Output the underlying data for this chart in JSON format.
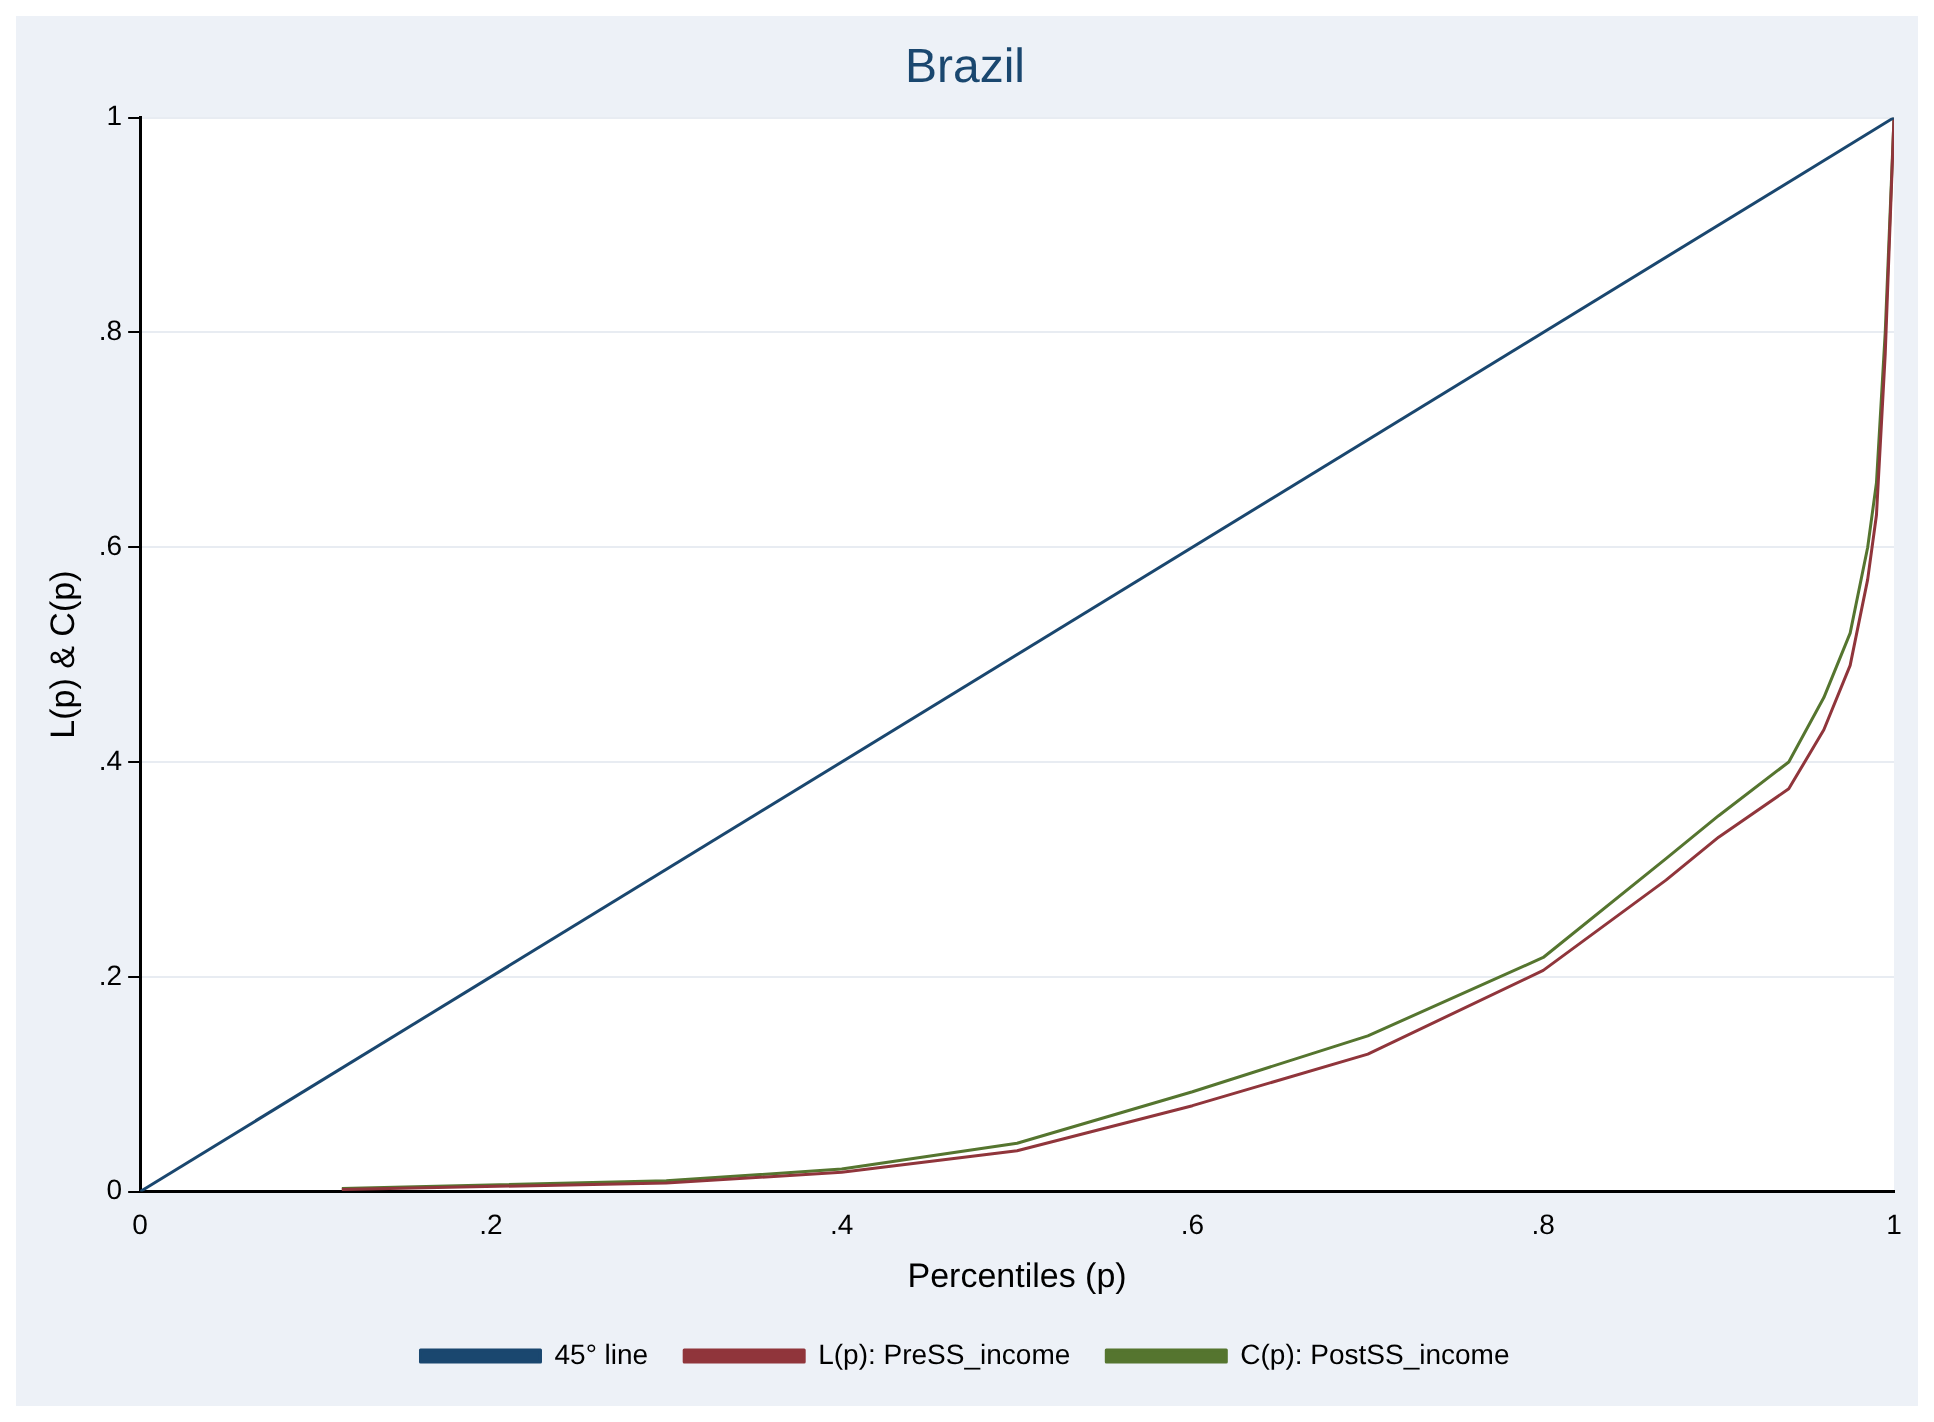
{
  "chart_data": {
    "type": "line",
    "title": "Brazil",
    "xlabel": "Percentiles (p)",
    "ylabel": "L(p) & C(p)",
    "xlim": [
      0,
      1
    ],
    "ylim": [
      0,
      1
    ],
    "xticks": [
      0,
      {
        "value": 0.2,
        "label": ".2"
      },
      {
        "value": 0.4,
        "label": ".4"
      },
      {
        "value": 0.6,
        "label": ".6"
      },
      {
        "value": 0.8,
        "label": ".8"
      },
      1
    ],
    "yticks": [
      0,
      {
        "value": 0.2,
        "label": ".2"
      },
      {
        "value": 0.4,
        "label": ".4"
      },
      {
        "value": 0.6,
        "label": ".6"
      },
      {
        "value": 0.8,
        "label": ".8"
      },
      1
    ],
    "grid": "y",
    "legend": "bottom",
    "marker": "none",
    "line_style": "solid",
    "series": [
      {
        "name": "45° line",
        "color": "#1a476f",
        "x": [
          0,
          1
        ],
        "values": [
          0,
          1
        ]
      },
      {
        "name": "L(p): PreSS_income",
        "color": "#90353b",
        "x": [
          0.115,
          0.3,
          0.4,
          0.5,
          0.6,
          0.7,
          0.8,
          0.87,
          0.9,
          0.94,
          0.96,
          0.975,
          0.985,
          0.99,
          0.995,
          1
        ],
        "values": [
          0.002,
          0.008,
          0.018,
          0.038,
          0.08,
          0.128,
          0.206,
          0.29,
          0.33,
          0.375,
          0.43,
          0.49,
          0.57,
          0.63,
          0.78,
          1
        ]
      },
      {
        "name": "C(p): PostSS_income",
        "color": "#55752f",
        "x": [
          0.115,
          0.3,
          0.4,
          0.5,
          0.6,
          0.7,
          0.8,
          0.87,
          0.9,
          0.94,
          0.96,
          0.975,
          0.985,
          0.99,
          0.995,
          0.998,
          1
        ],
        "values": [
          0.003,
          0.01,
          0.021,
          0.045,
          0.093,
          0.145,
          0.218,
          0.31,
          0.35,
          0.4,
          0.46,
          0.52,
          0.6,
          0.66,
          0.8,
          0.92,
          1
        ]
      }
    ]
  }
}
